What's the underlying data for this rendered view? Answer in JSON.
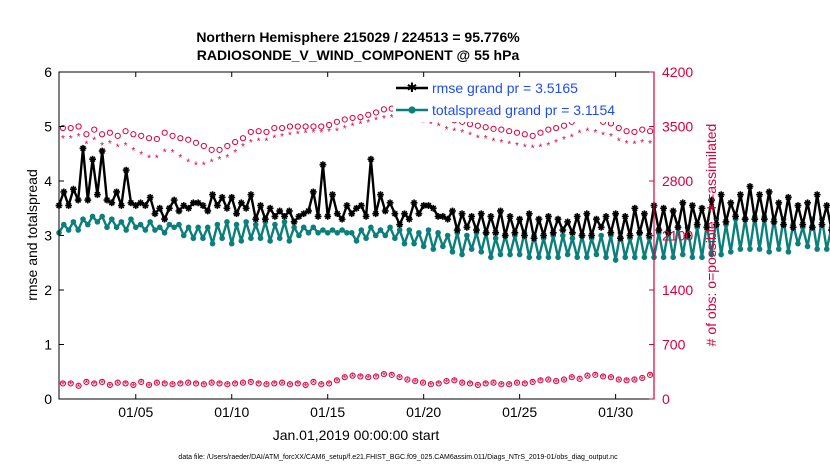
{
  "chart_data": {
    "type": "line",
    "title": "Northern Hemisphere 215029 / 224513 = 95.776%",
    "subtitle": "RADIOSONDE_V_WIND_COMPONENT @ 55 hPa",
    "xlabel": "Jan.01,2019 00:00:00 start",
    "ylabel_left": "rmse and totalspread",
    "ylabel_right": "# of obs: o=possible; ∗=assimilated",
    "xlim": [
      1,
      32
    ],
    "ylim_left": [
      0,
      6
    ],
    "ylim_right": [
      0,
      4200
    ],
    "x_ticks": [
      5,
      10,
      15,
      20,
      25,
      30
    ],
    "x_tick_labels": [
      "01/05",
      "01/10",
      "01/15",
      "01/20",
      "01/25",
      "01/30"
    ],
    "y_ticks_left": [
      0,
      1,
      2,
      3,
      4,
      5,
      6
    ],
    "y_tick_labels_left": [
      "0",
      "1",
      "2",
      "3",
      "4",
      "5",
      "6"
    ],
    "y_ticks_right": [
      0,
      700,
      1400,
      2100,
      2800,
      3500,
      4200
    ],
    "y_tick_labels_right": [
      "0",
      "700",
      "1400",
      "2100",
      "2800",
      "3500",
      "4200"
    ],
    "legend": {
      "position": "top-right",
      "entries": [
        "rmse grand pr = 3.5165",
        "totalspread grand pr = 3.1154"
      ]
    },
    "colors": {
      "rmse": "#000000",
      "totalspread": "#0b7f7a",
      "obs": "#d6003f",
      "legend_text": "#1f4ef0",
      "axis": "#000000"
    },
    "x_start": 1.0,
    "x_step": 0.25,
    "series": [
      {
        "name": "rmse",
        "axis": "left",
        "values": [
          3.55,
          3.8,
          3.55,
          3.85,
          3.65,
          4.6,
          3.65,
          4.4,
          3.75,
          4.55,
          3.65,
          3.6,
          3.8,
          3.55,
          4.2,
          3.6,
          3.55,
          3.6,
          3.55,
          3.7,
          3.4,
          3.5,
          3.3,
          3.5,
          3.65,
          3.45,
          3.55,
          3.5,
          3.6,
          3.6,
          3.55,
          3.45,
          3.75,
          3.55,
          3.7,
          3.5,
          3.7,
          3.4,
          3.6,
          3.5,
          3.75,
          3.3,
          3.55,
          3.3,
          3.5,
          3.35,
          3.45,
          3.35,
          3.45,
          3.25,
          3.35,
          3.4,
          3.45,
          3.8,
          3.35,
          4.3,
          3.35,
          3.75,
          3.4,
          3.3,
          3.55,
          3.4,
          3.5,
          3.55,
          3.35,
          4.4,
          3.4,
          3.75,
          3.45,
          3.6,
          3.4,
          3.2,
          3.4,
          3.3,
          3.6,
          3.4,
          3.55,
          3.55,
          3.5,
          3.35,
          3.35,
          3.3,
          3.45,
          3.1,
          3.4,
          3.15,
          3.35,
          3.1,
          3.4,
          3.05,
          3.35,
          3.05,
          3.45,
          3.0,
          3.35,
          3.05,
          3.3,
          3.0,
          3.4,
          2.95,
          3.3,
          3.0,
          3.35,
          3.05,
          3.3,
          3.1,
          3.25,
          3.05,
          3.35,
          3.0,
          3.4,
          3.0,
          3.3,
          3.15,
          3.35,
          3.05,
          3.4,
          2.95,
          3.35,
          3.0,
          3.5,
          3.05,
          3.4,
          3.0,
          3.55,
          3.1,
          3.5,
          3.05,
          3.45,
          3.15,
          3.6,
          3.0,
          3.55,
          3.2,
          3.5,
          3.15,
          3.65,
          3.2,
          3.75,
          3.25,
          3.6,
          3.35,
          3.75,
          3.3,
          3.9,
          3.3,
          3.75,
          3.3,
          3.8,
          3.25,
          3.6,
          3.2,
          3.7,
          3.15,
          3.55,
          3.2,
          3.6,
          3.15,
          3.75,
          3.2,
          3.55,
          3.1,
          3.45,
          2.75,
          2.7
        ]
      },
      {
        "name": "totalspread",
        "axis": "left",
        "values": [
          3.05,
          3.2,
          3.1,
          3.25,
          3.1,
          3.3,
          3.2,
          3.35,
          3.25,
          3.35,
          3.15,
          3.3,
          3.15,
          3.25,
          3.1,
          3.3,
          3.15,
          3.2,
          3.1,
          3.25,
          3.1,
          3.15,
          3.05,
          3.2,
          3.15,
          3.2,
          3.0,
          3.15,
          2.95,
          3.15,
          2.95,
          3.15,
          2.85,
          3.2,
          2.95,
          3.25,
          2.85,
          3.2,
          2.9,
          3.25,
          2.95,
          3.2,
          2.95,
          3.25,
          2.9,
          3.2,
          2.95,
          3.25,
          2.9,
          3.15,
          3.0,
          3.15,
          3.05,
          3.15,
          3.05,
          3.1,
          3.05,
          3.1,
          3.05,
          3.1,
          3.05,
          3.05,
          2.9,
          3.1,
          2.95,
          3.15,
          3.0,
          3.1,
          3.0,
          3.15,
          2.95,
          3.1,
          2.85,
          3.1,
          2.85,
          3.05,
          2.8,
          3.1,
          2.75,
          3.05,
          2.8,
          3.0,
          2.7,
          3.05,
          2.65,
          3.0,
          2.75,
          3.05,
          2.7,
          3.05,
          2.6,
          2.95,
          2.65,
          3.0,
          2.65,
          3.0,
          2.65,
          3.05,
          2.6,
          3.0,
          2.6,
          2.95,
          2.6,
          3.0,
          2.6,
          3.0,
          2.65,
          2.95,
          2.6,
          3.0,
          2.6,
          2.95,
          2.65,
          3.0,
          2.6,
          3.0,
          2.55,
          3.05,
          2.6,
          2.95,
          2.6,
          3.05,
          2.6,
          2.95,
          2.6,
          3.05,
          2.6,
          3.1,
          2.6,
          3.15,
          2.65,
          3.15,
          2.6,
          3.15,
          2.6,
          3.2,
          2.65,
          3.3,
          2.65,
          3.2,
          2.7,
          3.3,
          2.75,
          3.3,
          2.75,
          3.35,
          2.75,
          3.35,
          2.7,
          3.3,
          2.75,
          3.3,
          2.7,
          3.2,
          2.85,
          3.15,
          2.8,
          3.3,
          2.75,
          3.3,
          2.75,
          3.15,
          2.75,
          3.3,
          2.75,
          3.3,
          2.75,
          3.25,
          2.75,
          3.15,
          2.65,
          2.7
        ]
      },
      {
        "name": "obs_possible",
        "axis": "right",
        "values": [
          3480,
          3480,
          3500,
          3400,
          3460,
          3400,
          3420,
          3380,
          3440,
          3400,
          3380,
          3350,
          3340,
          3420,
          3380,
          3350,
          3330,
          3290,
          3250,
          3200,
          3200,
          3250,
          3300,
          3350,
          3430,
          3440,
          3430,
          3480,
          3480,
          3500,
          3500,
          3500,
          3500,
          3500,
          3520,
          3560,
          3590,
          3610,
          3620,
          3650,
          3680,
          3720,
          3730,
          3720,
          3700,
          3720,
          3690,
          3680,
          3640,
          3600,
          3580,
          3560,
          3530,
          3510,
          3490,
          3470,
          3460,
          3440,
          3420,
          3400,
          3380,
          3420,
          3460,
          3480,
          3510,
          3560,
          3600,
          3620,
          3610,
          3560,
          3540,
          3480,
          3440,
          3430,
          3460,
          3440
        ]
      },
      {
        "name": "obs_assimilated",
        "axis": "right",
        "values": [
          3350,
          3350,
          3380,
          3280,
          3330,
          3260,
          3290,
          3240,
          3260,
          3200,
          3150,
          3100,
          3100,
          3180,
          3170,
          3110,
          3050,
          3010,
          3010,
          3050,
          3080,
          3110,
          3170,
          3250,
          3300,
          3320,
          3320,
          3360,
          3380,
          3400,
          3410,
          3420,
          3430,
          3430,
          3440,
          3450,
          3480,
          3510,
          3540,
          3560,
          3590,
          3610,
          3620,
          3600,
          3580,
          3600,
          3560,
          3540,
          3510,
          3470,
          3450,
          3430,
          3400,
          3360,
          3350,
          3320,
          3300,
          3280,
          3260,
          3240,
          3230,
          3240,
          3260,
          3300,
          3340,
          3370,
          3420,
          3450,
          3430,
          3400,
          3380,
          3320,
          3290,
          3280,
          3300,
          3290
        ]
      },
      {
        "name": "obs_low_possible",
        "axis": "right",
        "values": [
          200,
          200,
          170,
          220,
          200,
          220,
          180,
          210,
          200,
          180,
          220,
          180,
          210,
          200,
          190,
          200,
          210,
          200,
          190,
          210,
          200,
          190,
          200,
          210,
          220,
          200,
          190,
          200,
          210,
          190,
          200,
          180,
          220,
          190,
          200,
          240,
          280,
          300,
          290,
          280,
          290,
          320,
          310,
          280,
          250,
          230,
          210,
          190,
          200,
          230,
          240,
          210,
          200,
          180,
          200,
          210,
          190,
          190,
          210,
          200,
          220,
          240,
          250,
          230,
          250,
          280,
          260,
          300,
          310,
          290,
          280,
          250,
          240,
          250,
          270,
          310
        ]
      },
      {
        "name": "obs_low_assimilated",
        "axis": "right",
        "values": [
          190,
          190,
          160,
          210,
          190,
          210,
          170,
          200,
          190,
          170,
          210,
          170,
          200,
          190,
          180,
          190,
          200,
          190,
          180,
          200,
          190,
          180,
          190,
          200,
          210,
          190,
          180,
          190,
          200,
          180,
          190,
          170,
          210,
          180,
          190,
          230,
          270,
          290,
          280,
          270,
          280,
          310,
          300,
          270,
          240,
          220,
          200,
          180,
          190,
          220,
          230,
          200,
          190,
          170,
          190,
          200,
          180,
          180,
          200,
          190,
          210,
          230,
          240,
          220,
          240,
          270,
          250,
          290,
          300,
          280,
          270,
          240,
          230,
          240,
          260,
          300
        ]
      }
    ],
    "footnote": "data file: /Users/raeder/DAI/ATM_forcXX/CAM6_setup/f.e21.FHIST_BGC.f09_025.CAM6assim.011/Diags_NTrS_2019-01/obs_diag_output.nc"
  }
}
